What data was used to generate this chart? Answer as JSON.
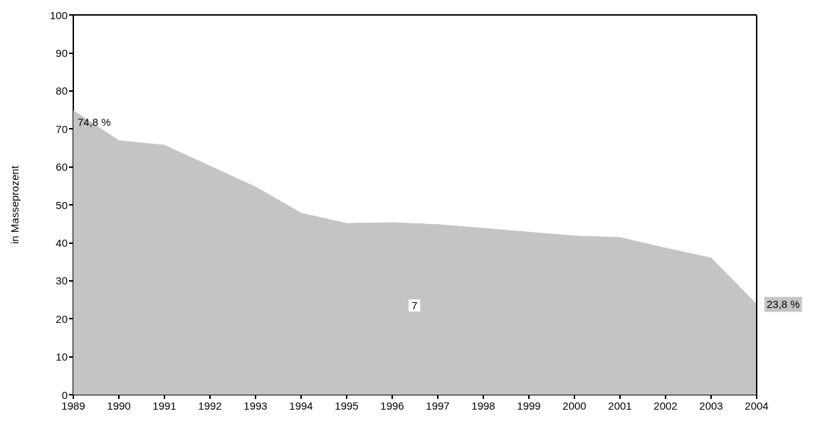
{
  "chart_data": {
    "type": "area",
    "ylabel": "in Masseprozent",
    "x": [
      1989,
      1990,
      1991,
      1992,
      1993,
      1994,
      1995,
      1996,
      1997,
      1998,
      1999,
      2000,
      2001,
      2002,
      2003,
      2004
    ],
    "series": [
      {
        "color": "#c4c4c4",
        "values": [
          74.8,
          66.9,
          65.7,
          60.2,
          54.7,
          47.8,
          45.1,
          45.3,
          44.8,
          43.8,
          42.8,
          41.8,
          41.4,
          38.6,
          36.0,
          23.8
        ],
        "value_labels": [
          "74,8 %",
          null,
          null,
          null,
          null,
          null,
          null,
          null,
          null,
          null,
          null,
          null,
          null,
          null,
          null,
          "23,8 %"
        ]
      }
    ],
    "annotations": [
      "7"
    ],
    "xlim": [
      1989,
      2004
    ],
    "xticks": [
      1989,
      1990,
      1991,
      1992,
      1993,
      1994,
      1995,
      1996,
      1997,
      1998,
      1999,
      2000,
      2001,
      2002,
      2003,
      2004
    ],
    "ylim": [
      0,
      100
    ],
    "yticks": [
      0,
      10,
      20,
      30,
      40,
      50,
      60,
      70,
      80,
      90,
      100
    ],
    "grid": false
  }
}
